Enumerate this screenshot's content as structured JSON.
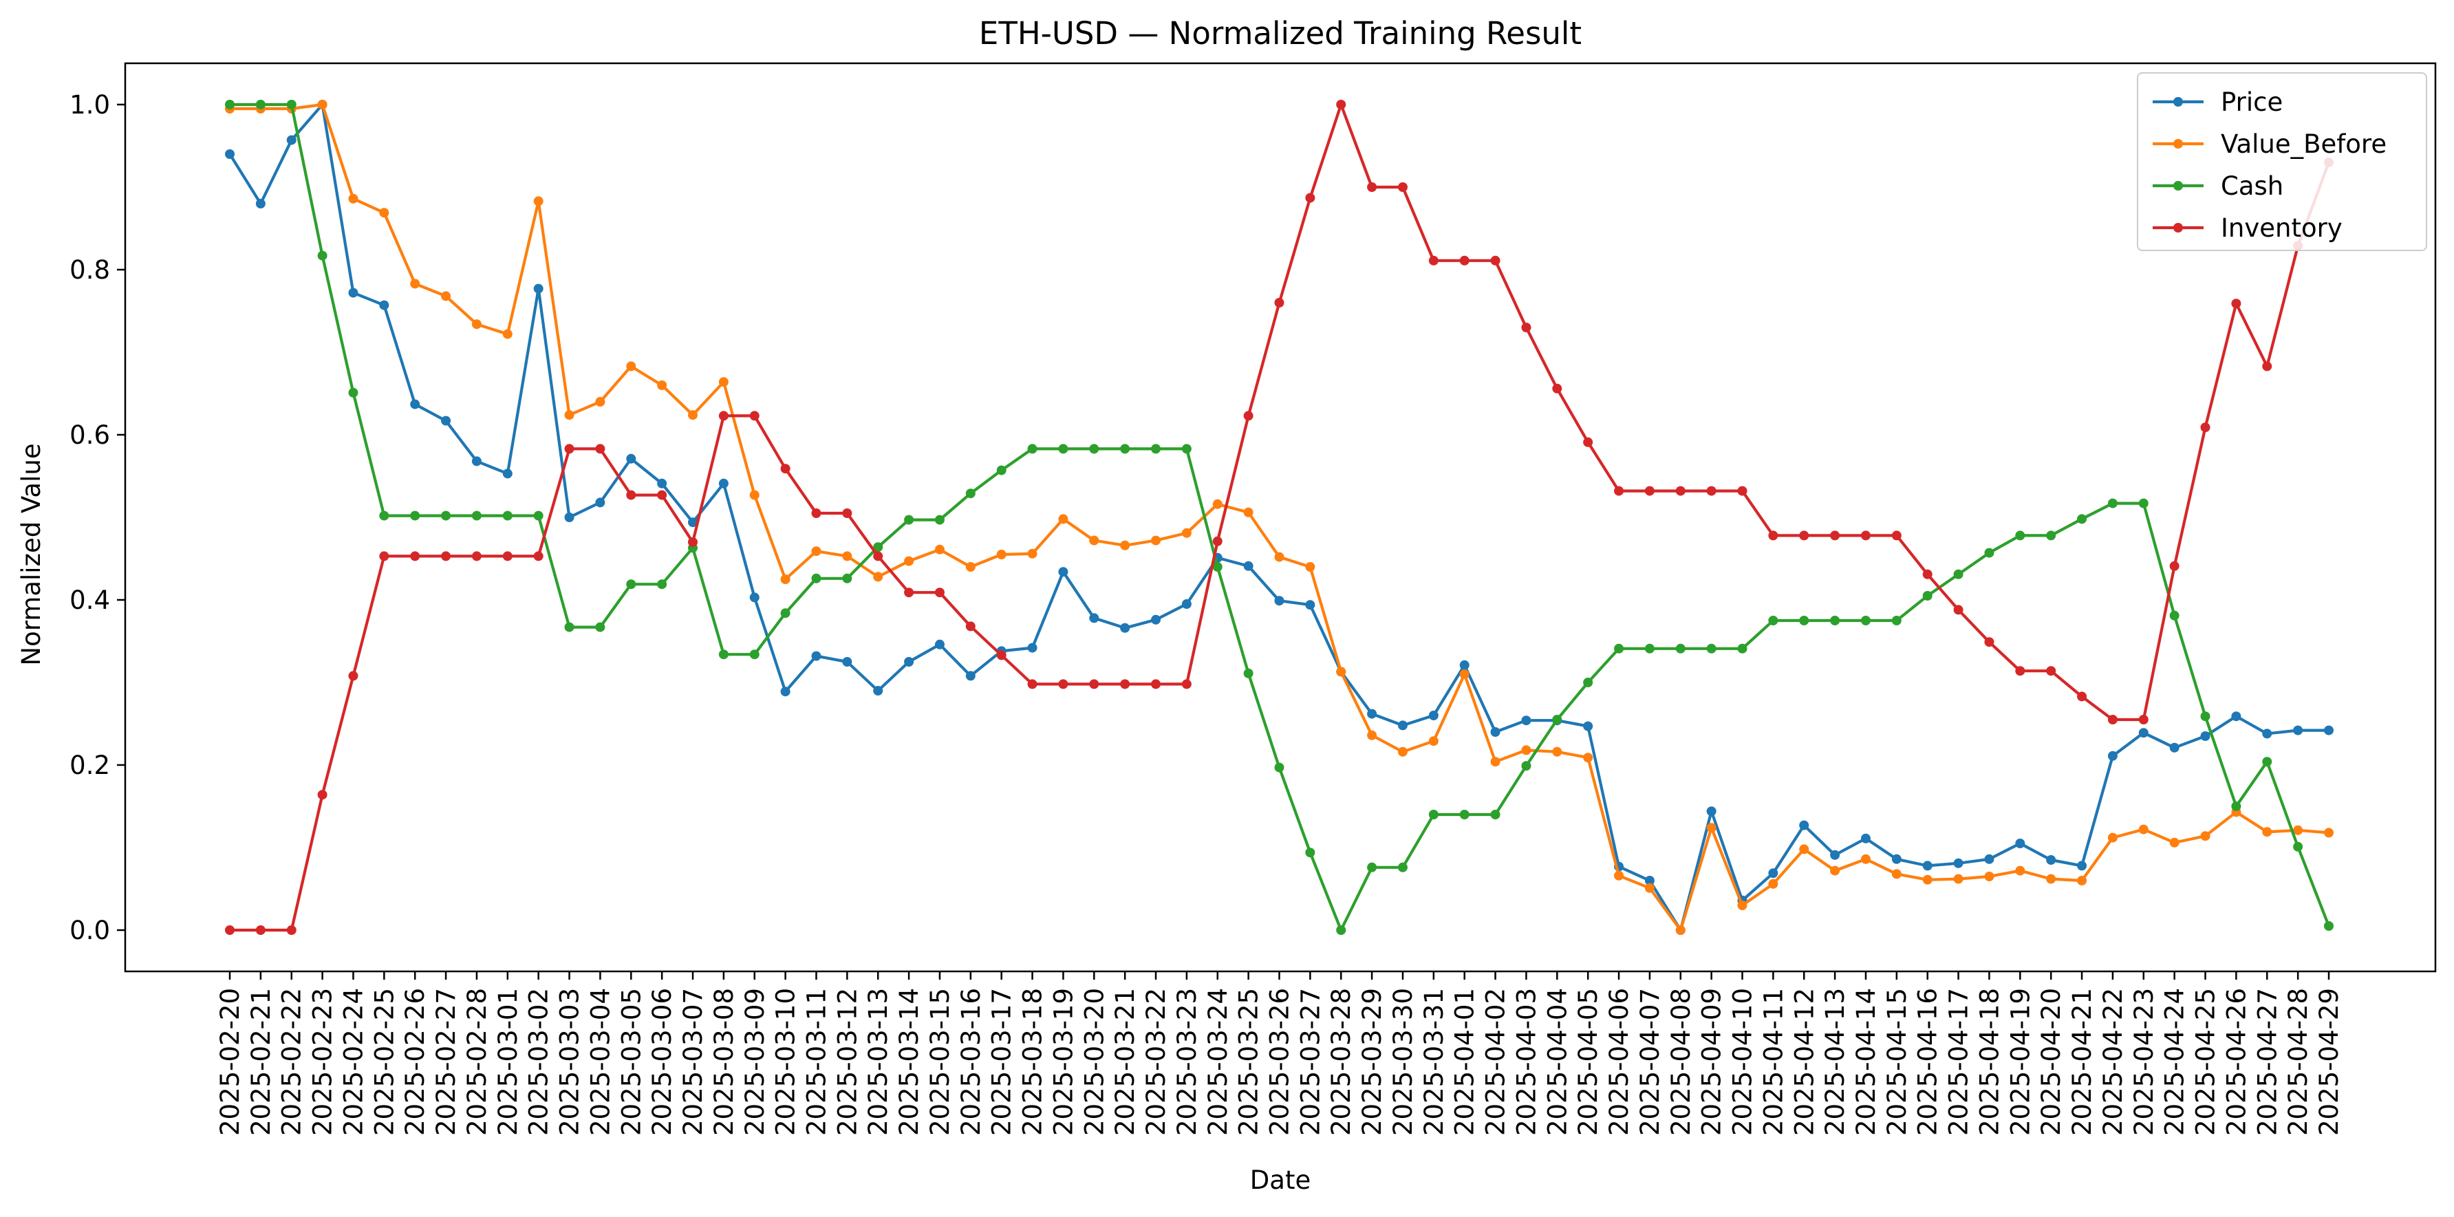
{
  "chart_data": {
    "type": "line",
    "title": "ETH-USD — Normalized Training Result",
    "xlabel": "Date",
    "ylabel": "Normalized Value",
    "ylim": [
      -0.05,
      1.05
    ],
    "y_ticks": [
      0.0,
      0.2,
      0.4,
      0.6,
      0.8,
      1.0
    ],
    "y_tick_labels": [
      "0.0",
      "0.2",
      "0.4",
      "0.6",
      "0.8",
      "1.0"
    ],
    "grid": false,
    "legend_position": "top-right",
    "x": [
      "2025-02-20",
      "2025-02-21",
      "2025-02-22",
      "2025-02-23",
      "2025-02-24",
      "2025-02-25",
      "2025-02-26",
      "2025-02-27",
      "2025-02-28",
      "2025-03-01",
      "2025-03-02",
      "2025-03-03",
      "2025-03-04",
      "2025-03-05",
      "2025-03-06",
      "2025-03-07",
      "2025-03-08",
      "2025-03-09",
      "2025-03-10",
      "2025-03-11",
      "2025-03-12",
      "2025-03-13",
      "2025-03-14",
      "2025-03-15",
      "2025-03-16",
      "2025-03-17",
      "2025-03-18",
      "2025-03-19",
      "2025-03-20",
      "2025-03-21",
      "2025-03-22",
      "2025-03-23",
      "2025-03-24",
      "2025-03-25",
      "2025-03-26",
      "2025-03-27",
      "2025-03-28",
      "2025-03-29",
      "2025-03-30",
      "2025-03-31",
      "2025-04-01",
      "2025-04-02",
      "2025-04-03",
      "2025-04-04",
      "2025-04-05",
      "2025-04-06",
      "2025-04-07",
      "2025-04-08",
      "2025-04-09",
      "2025-04-10",
      "2025-04-11",
      "2025-04-12",
      "2025-04-13",
      "2025-04-14",
      "2025-04-15",
      "2025-04-16",
      "2025-04-17",
      "2025-04-18",
      "2025-04-19",
      "2025-04-20",
      "2025-04-21",
      "2025-04-22",
      "2025-04-23",
      "2025-04-24",
      "2025-04-25",
      "2025-04-26",
      "2025-04-27",
      "2025-04-28",
      "2025-04-29"
    ],
    "series": [
      {
        "name": "Price",
        "color": "#1f77b4",
        "values": [
          0.94,
          0.88,
          0.957,
          1.0,
          0.772,
          0.757,
          0.637,
          0.617,
          0.568,
          0.553,
          0.777,
          0.5,
          0.518,
          0.571,
          0.541,
          0.494,
          0.541,
          0.403,
          0.289,
          0.332,
          0.325,
          0.29,
          0.325,
          0.346,
          0.308,
          0.338,
          0.342,
          0.434,
          0.378,
          0.366,
          0.376,
          0.395,
          0.451,
          0.441,
          0.399,
          0.394,
          0.313,
          0.262,
          0.248,
          0.26,
          0.321,
          0.24,
          0.254,
          0.254,
          0.247,
          0.077,
          0.06,
          0.0,
          0.144,
          0.036,
          0.069,
          0.127,
          0.091,
          0.111,
          0.086,
          0.078,
          0.081,
          0.086,
          0.105,
          0.085,
          0.078,
          0.211,
          0.239,
          0.221,
          0.235,
          0.259,
          0.238,
          0.242,
          0.242
        ]
      },
      {
        "name": "Value_Before",
        "color": "#ff7f0e",
        "values": [
          0.995,
          0.995,
          0.995,
          1.0,
          0.886,
          0.869,
          0.783,
          0.768,
          0.734,
          0.722,
          0.883,
          0.624,
          0.64,
          0.683,
          0.66,
          0.624,
          0.664,
          0.527,
          0.425,
          0.459,
          0.453,
          0.428,
          0.447,
          0.461,
          0.44,
          0.455,
          0.456,
          0.498,
          0.472,
          0.466,
          0.472,
          0.481,
          0.516,
          0.506,
          0.452,
          0.44,
          0.313,
          0.236,
          0.216,
          0.229,
          0.31,
          0.204,
          0.218,
          0.216,
          0.209,
          0.066,
          0.051,
          0.0,
          0.124,
          0.03,
          0.056,
          0.098,
          0.072,
          0.086,
          0.068,
          0.061,
          0.062,
          0.065,
          0.072,
          0.062,
          0.06,
          0.112,
          0.122,
          0.106,
          0.114,
          0.143,
          0.119,
          0.121,
          0.118
        ]
      },
      {
        "name": "Cash",
        "color": "#2ca02c",
        "values": [
          1.0,
          1.0,
          1.0,
          0.817,
          0.651,
          0.502,
          0.502,
          0.502,
          0.502,
          0.502,
          0.502,
          0.367,
          0.367,
          0.419,
          0.419,
          0.463,
          0.334,
          0.334,
          0.384,
          0.426,
          0.426,
          0.464,
          0.497,
          0.497,
          0.529,
          0.557,
          0.583,
          0.583,
          0.583,
          0.583,
          0.583,
          0.583,
          0.44,
          0.311,
          0.197,
          0.094,
          0.0,
          0.076,
          0.076,
          0.14,
          0.14,
          0.14,
          0.199,
          0.255,
          0.3,
          0.341,
          0.341,
          0.341,
          0.341,
          0.341,
          0.375,
          0.375,
          0.375,
          0.375,
          0.375,
          0.405,
          0.431,
          0.457,
          0.478,
          0.478,
          0.498,
          0.517,
          0.517,
          0.381,
          0.259,
          0.15,
          0.204,
          0.101,
          0.005
        ]
      },
      {
        "name": "Inventory",
        "color": "#d62728",
        "values": [
          0.0,
          0.0,
          0.0,
          0.164,
          0.308,
          0.453,
          0.453,
          0.453,
          0.453,
          0.453,
          0.453,
          0.583,
          0.583,
          0.527,
          0.527,
          0.47,
          0.623,
          0.623,
          0.559,
          0.505,
          0.505,
          0.453,
          0.409,
          0.409,
          0.368,
          0.333,
          0.298,
          0.298,
          0.298,
          0.298,
          0.298,
          0.298,
          0.471,
          0.623,
          0.76,
          0.887,
          1.0,
          0.9,
          0.9,
          0.811,
          0.811,
          0.811,
          0.73,
          0.656,
          0.591,
          0.532,
          0.532,
          0.532,
          0.532,
          0.532,
          0.478,
          0.478,
          0.478,
          0.478,
          0.478,
          0.431,
          0.388,
          0.349,
          0.314,
          0.314,
          0.283,
          0.255,
          0.255,
          0.441,
          0.609,
          0.759,
          0.683,
          0.829,
          0.93
        ]
      }
    ]
  }
}
